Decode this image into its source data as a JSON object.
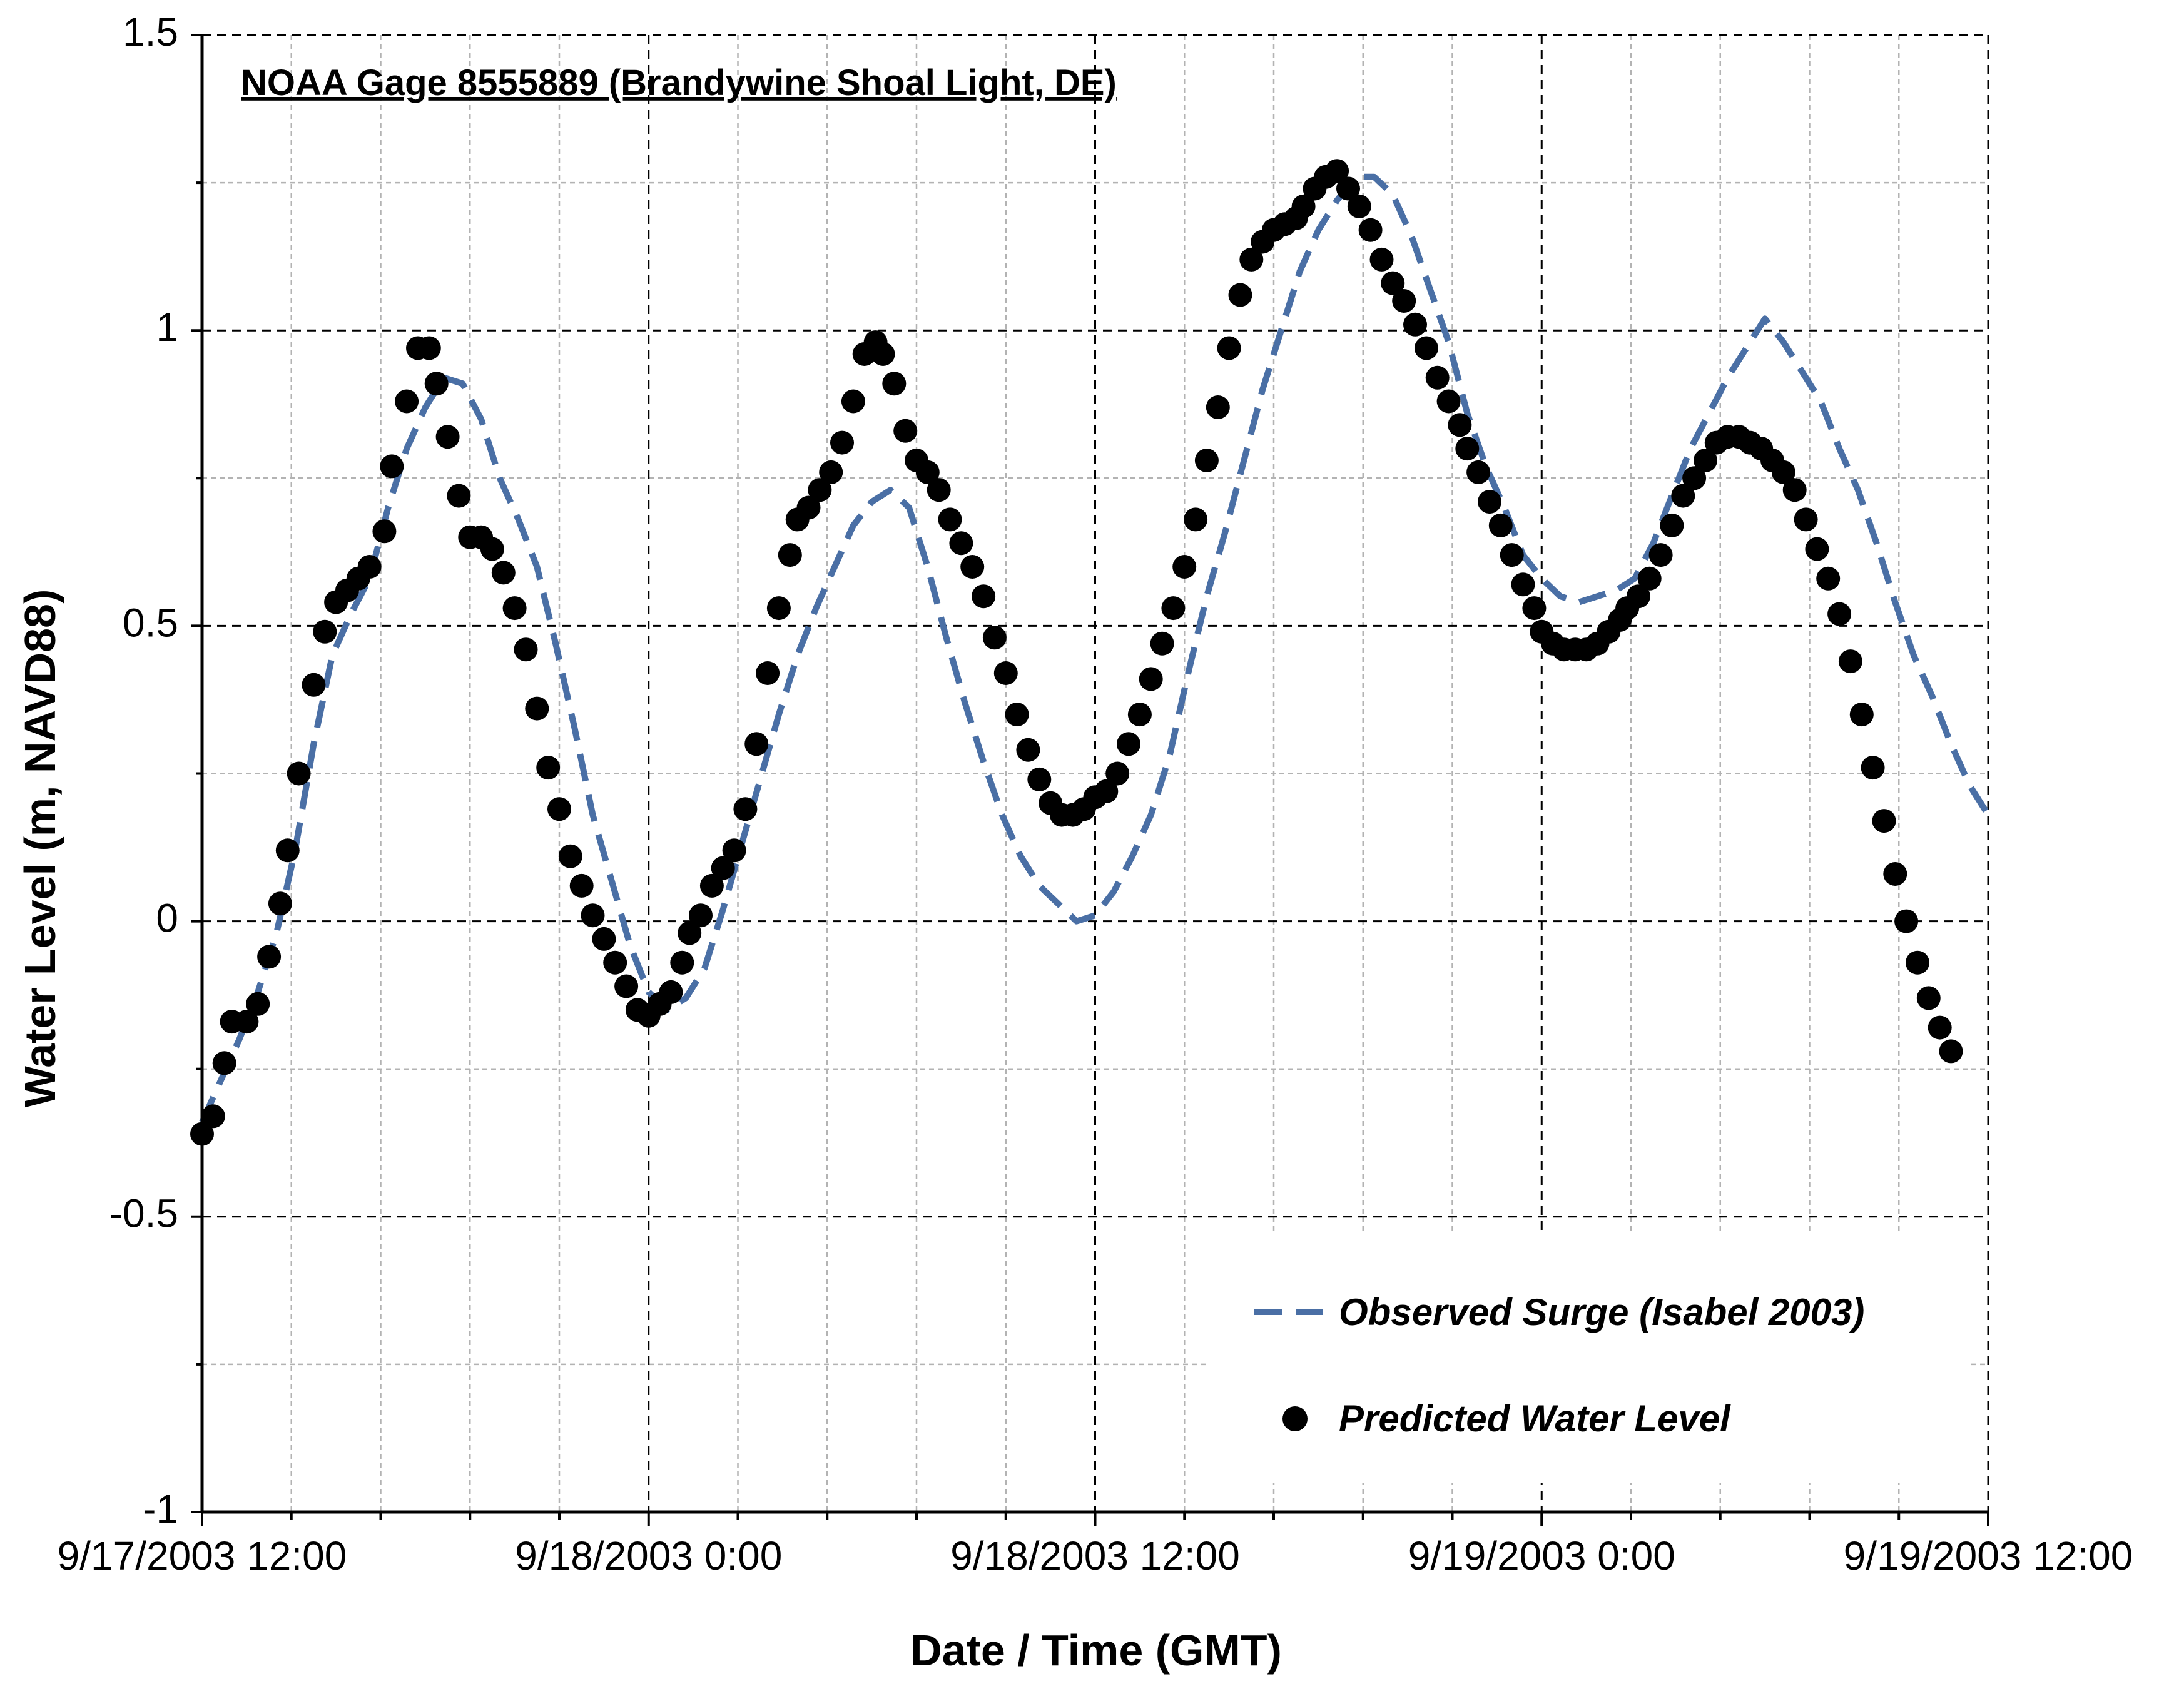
{
  "chart_data": {
    "type": "line",
    "title": "NOAA Gage 8555889 (Brandywine Shoal Light, DE)",
    "xlabel": "Date / Time (GMT)",
    "ylabel": "Water Level (m, NAVD88)",
    "x_unit": "hours since 9/17/2003 12:00",
    "xlim": [
      0,
      48
    ],
    "ylim": [
      -1,
      1.5
    ],
    "x_ticks": [
      {
        "value": 0,
        "label": "9/17/2003 12:00"
      },
      {
        "value": 12,
        "label": "9/18/2003 0:00"
      },
      {
        "value": 24,
        "label": "9/18/2003 12:00"
      },
      {
        "value": 36,
        "label": "9/19/2003 0:00"
      },
      {
        "value": 48,
        "label": "9/19/2003 12:00"
      }
    ],
    "y_ticks": [
      {
        "value": 1.5,
        "label": "1.5"
      },
      {
        "value": 1,
        "label": "1"
      },
      {
        "value": 0.5,
        "label": "0.5"
      },
      {
        "value": 0,
        "label": "0"
      },
      {
        "value": -0.5,
        "label": "-0.5"
      },
      {
        "value": -1,
        "label": "-1"
      }
    ],
    "grid": true,
    "legend_position": "bottom-right",
    "series": [
      {
        "name": "Observed Surge (Isabel 2003)",
        "style": "dashed-line",
        "color": "#4a6fa5",
        "points": [
          [
            0.0,
            -0.34
          ],
          [
            0.5,
            -0.27
          ],
          [
            1.0,
            -0.2
          ],
          [
            1.5,
            -0.12
          ],
          [
            2.0,
            -0.02
          ],
          [
            2.5,
            0.12
          ],
          [
            3.0,
            0.3
          ],
          [
            3.5,
            0.45
          ],
          [
            4.0,
            0.52
          ],
          [
            4.5,
            0.58
          ],
          [
            5.0,
            0.7
          ],
          [
            5.5,
            0.8
          ],
          [
            6.0,
            0.87
          ],
          [
            6.5,
            0.92
          ],
          [
            7.0,
            0.91
          ],
          [
            7.5,
            0.85
          ],
          [
            8.0,
            0.75
          ],
          [
            8.5,
            0.68
          ],
          [
            9.0,
            0.6
          ],
          [
            9.5,
            0.47
          ],
          [
            10.0,
            0.33
          ],
          [
            10.5,
            0.18
          ],
          [
            11.0,
            0.07
          ],
          [
            11.5,
            -0.04
          ],
          [
            12.0,
            -0.12
          ],
          [
            12.5,
            -0.15
          ],
          [
            13.0,
            -0.13
          ],
          [
            13.5,
            -0.08
          ],
          [
            14.0,
            0.02
          ],
          [
            14.5,
            0.13
          ],
          [
            15.0,
            0.24
          ],
          [
            15.5,
            0.35
          ],
          [
            16.0,
            0.45
          ],
          [
            16.5,
            0.53
          ],
          [
            17.0,
            0.6
          ],
          [
            17.5,
            0.67
          ],
          [
            18.0,
            0.71
          ],
          [
            18.5,
            0.73
          ],
          [
            19.0,
            0.7
          ],
          [
            19.5,
            0.6
          ],
          [
            20.0,
            0.48
          ],
          [
            20.5,
            0.37
          ],
          [
            21.0,
            0.27
          ],
          [
            21.5,
            0.18
          ],
          [
            22.0,
            0.11
          ],
          [
            22.5,
            0.06
          ],
          [
            23.0,
            0.03
          ],
          [
            23.5,
            0.0
          ],
          [
            24.0,
            0.01
          ],
          [
            24.5,
            0.05
          ],
          [
            25.0,
            0.11
          ],
          [
            25.5,
            0.18
          ],
          [
            26.0,
            0.28
          ],
          [
            26.5,
            0.42
          ],
          [
            27.0,
            0.55
          ],
          [
            27.5,
            0.66
          ],
          [
            28.0,
            0.78
          ],
          [
            28.5,
            0.9
          ],
          [
            29.0,
            1.0
          ],
          [
            29.5,
            1.1
          ],
          [
            30.0,
            1.17
          ],
          [
            30.5,
            1.22
          ],
          [
            31.0,
            1.26
          ],
          [
            31.5,
            1.26
          ],
          [
            32.0,
            1.23
          ],
          [
            32.5,
            1.16
          ],
          [
            33.0,
            1.07
          ],
          [
            33.5,
            0.98
          ],
          [
            34.0,
            0.86
          ],
          [
            34.5,
            0.77
          ],
          [
            35.0,
            0.7
          ],
          [
            35.5,
            0.62
          ],
          [
            36.0,
            0.58
          ],
          [
            36.5,
            0.55
          ],
          [
            37.0,
            0.54
          ],
          [
            37.5,
            0.55
          ],
          [
            38.0,
            0.56
          ],
          [
            38.5,
            0.58
          ],
          [
            39.0,
            0.64
          ],
          [
            39.5,
            0.72
          ],
          [
            40.0,
            0.8
          ],
          [
            40.5,
            0.86
          ],
          [
            41.0,
            0.92
          ],
          [
            41.5,
            0.97
          ],
          [
            42.0,
            1.02
          ],
          [
            42.5,
            0.98
          ],
          [
            43.0,
            0.93
          ],
          [
            43.5,
            0.88
          ],
          [
            44.0,
            0.8
          ],
          [
            44.5,
            0.73
          ],
          [
            45.0,
            0.64
          ],
          [
            45.5,
            0.54
          ],
          [
            46.0,
            0.45
          ],
          [
            46.5,
            0.38
          ],
          [
            47.0,
            0.3
          ],
          [
            47.5,
            0.23
          ],
          [
            48.0,
            0.18
          ]
        ]
      },
      {
        "name": "Predicted Water Level",
        "style": "markers",
        "color": "#000000",
        "points": [
          [
            0.0,
            -0.36
          ],
          [
            0.3,
            -0.33
          ],
          [
            0.6,
            -0.24
          ],
          [
            0.8,
            -0.17
          ],
          [
            1.2,
            -0.17
          ],
          [
            1.5,
            -0.14
          ],
          [
            1.8,
            -0.06
          ],
          [
            2.1,
            0.03
          ],
          [
            2.3,
            0.12
          ],
          [
            2.6,
            0.25
          ],
          [
            3.0,
            0.4
          ],
          [
            3.3,
            0.49
          ],
          [
            3.6,
            0.54
          ],
          [
            3.9,
            0.56
          ],
          [
            4.2,
            0.58
          ],
          [
            4.5,
            0.6
          ],
          [
            4.9,
            0.66
          ],
          [
            5.1,
            0.77
          ],
          [
            5.5,
            0.88
          ],
          [
            5.8,
            0.97
          ],
          [
            6.1,
            0.97
          ],
          [
            6.3,
            0.91
          ],
          [
            6.6,
            0.82
          ],
          [
            6.9,
            0.72
          ],
          [
            7.2,
            0.65
          ],
          [
            7.5,
            0.65
          ],
          [
            7.8,
            0.63
          ],
          [
            8.1,
            0.59
          ],
          [
            8.4,
            0.53
          ],
          [
            8.7,
            0.46
          ],
          [
            9.0,
            0.36
          ],
          [
            9.3,
            0.26
          ],
          [
            9.6,
            0.19
          ],
          [
            9.9,
            0.11
          ],
          [
            10.2,
            0.06
          ],
          [
            10.5,
            0.01
          ],
          [
            10.8,
            -0.03
          ],
          [
            11.1,
            -0.07
          ],
          [
            11.4,
            -0.11
          ],
          [
            11.7,
            -0.15
          ],
          [
            12.0,
            -0.16
          ],
          [
            12.3,
            -0.14
          ],
          [
            12.6,
            -0.12
          ],
          [
            12.9,
            -0.07
          ],
          [
            13.1,
            -0.02
          ],
          [
            13.4,
            0.01
          ],
          [
            13.7,
            0.06
          ],
          [
            14.0,
            0.09
          ],
          [
            14.3,
            0.12
          ],
          [
            14.6,
            0.19
          ],
          [
            14.9,
            0.3
          ],
          [
            15.2,
            0.42
          ],
          [
            15.5,
            0.53
          ],
          [
            15.8,
            0.62
          ],
          [
            16.0,
            0.68
          ],
          [
            16.3,
            0.7
          ],
          [
            16.6,
            0.73
          ],
          [
            16.9,
            0.76
          ],
          [
            17.2,
            0.81
          ],
          [
            17.5,
            0.88
          ],
          [
            17.8,
            0.96
          ],
          [
            18.1,
            0.98
          ],
          [
            18.3,
            0.96
          ],
          [
            18.6,
            0.91
          ],
          [
            18.9,
            0.83
          ],
          [
            19.2,
            0.78
          ],
          [
            19.5,
            0.76
          ],
          [
            19.8,
            0.73
          ],
          [
            20.1,
            0.68
          ],
          [
            20.4,
            0.64
          ],
          [
            20.7,
            0.6
          ],
          [
            21.0,
            0.55
          ],
          [
            21.3,
            0.48
          ],
          [
            21.6,
            0.42
          ],
          [
            21.9,
            0.35
          ],
          [
            22.2,
            0.29
          ],
          [
            22.5,
            0.24
          ],
          [
            22.8,
            0.2
          ],
          [
            23.1,
            0.18
          ],
          [
            23.4,
            0.18
          ],
          [
            23.7,
            0.19
          ],
          [
            24.0,
            0.21
          ],
          [
            24.3,
            0.22
          ],
          [
            24.6,
            0.25
          ],
          [
            24.9,
            0.3
          ],
          [
            25.2,
            0.35
          ],
          [
            25.5,
            0.41
          ],
          [
            25.8,
            0.47
          ],
          [
            26.1,
            0.53
          ],
          [
            26.4,
            0.6
          ],
          [
            26.7,
            0.68
          ],
          [
            27.0,
            0.78
          ],
          [
            27.3,
            0.87
          ],
          [
            27.6,
            0.97
          ],
          [
            27.9,
            1.06
          ],
          [
            28.2,
            1.12
          ],
          [
            28.5,
            1.15
          ],
          [
            28.8,
            1.17
          ],
          [
            29.1,
            1.18
          ],
          [
            29.4,
            1.19
          ],
          [
            29.6,
            1.21
          ],
          [
            29.9,
            1.24
          ],
          [
            30.2,
            1.26
          ],
          [
            30.5,
            1.27
          ],
          [
            30.8,
            1.24
          ],
          [
            31.1,
            1.21
          ],
          [
            31.4,
            1.17
          ],
          [
            31.7,
            1.12
          ],
          [
            32.0,
            1.08
          ],
          [
            32.3,
            1.05
          ],
          [
            32.6,
            1.01
          ],
          [
            32.9,
            0.97
          ],
          [
            33.2,
            0.92
          ],
          [
            33.5,
            0.88
          ],
          [
            33.8,
            0.84
          ],
          [
            34.0,
            0.8
          ],
          [
            34.3,
            0.76
          ],
          [
            34.6,
            0.71
          ],
          [
            34.9,
            0.67
          ],
          [
            35.2,
            0.62
          ],
          [
            35.5,
            0.57
          ],
          [
            35.8,
            0.53
          ],
          [
            36.0,
            0.49
          ],
          [
            36.3,
            0.47
          ],
          [
            36.6,
            0.46
          ],
          [
            36.9,
            0.46
          ],
          [
            37.2,
            0.46
          ],
          [
            37.5,
            0.47
          ],
          [
            37.8,
            0.49
          ],
          [
            38.1,
            0.51
          ],
          [
            38.3,
            0.53
          ],
          [
            38.6,
            0.55
          ],
          [
            38.9,
            0.58
          ],
          [
            39.2,
            0.62
          ],
          [
            39.5,
            0.67
          ],
          [
            39.8,
            0.72
          ],
          [
            40.1,
            0.75
          ],
          [
            40.4,
            0.78
          ],
          [
            40.7,
            0.81
          ],
          [
            41.0,
            0.82
          ],
          [
            41.3,
            0.82
          ],
          [
            41.6,
            0.81
          ],
          [
            41.9,
            0.8
          ],
          [
            42.2,
            0.78
          ],
          [
            42.5,
            0.76
          ],
          [
            42.8,
            0.73
          ],
          [
            43.1,
            0.68
          ],
          [
            43.4,
            0.63
          ],
          [
            43.7,
            0.58
          ],
          [
            44.0,
            0.52
          ],
          [
            44.3,
            0.44
          ],
          [
            44.6,
            0.35
          ],
          [
            44.9,
            0.26
          ],
          [
            45.2,
            0.17
          ],
          [
            45.5,
            0.08
          ],
          [
            45.8,
            0.0
          ],
          [
            46.1,
            -0.07
          ],
          [
            46.4,
            -0.13
          ],
          [
            46.7,
            -0.18
          ],
          [
            47.0,
            -0.22
          ]
        ]
      }
    ]
  }
}
